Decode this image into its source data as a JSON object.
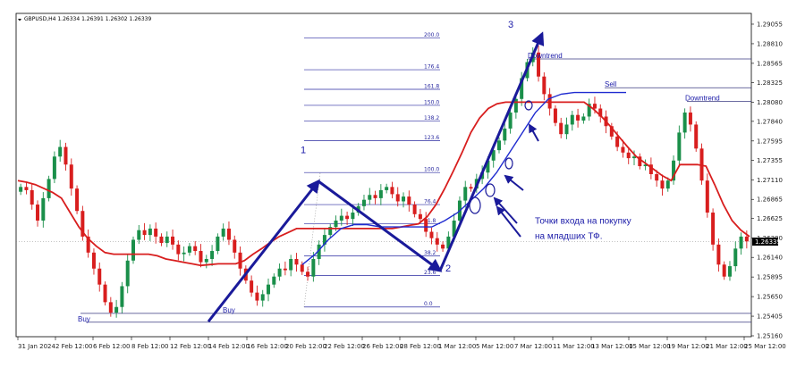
{
  "symbol_header": "GBPUSD,H4  1.26334 1.26391 1.26302 1.26339",
  "chart_data": {
    "type": "candlestick",
    "symbol": "GBPUSD",
    "timeframe": "H4",
    "ohlc_header": {
      "open": 1.26334,
      "high": 1.26391,
      "low": 1.26302,
      "close": 1.26339
    },
    "current_price_label": "1.26339",
    "ylim": [
      1.2505,
      1.2912
    ],
    "y_ticks": [
      "1.29055",
      "1.28810",
      "1.28565",
      "1.28325",
      "1.28080",
      "1.27840",
      "1.27595",
      "1.27355",
      "1.27110",
      "1.26865",
      "1.26625",
      "1.26380",
      "1.26140",
      "1.25895",
      "1.25650",
      "1.25405",
      "1.25160"
    ],
    "x_ticks": [
      "31 Jan 2024",
      "2 Feb 12:00",
      "6 Feb 12:00",
      "8 Feb 12:00",
      "12 Feb 12:00",
      "14 Feb 12:00",
      "16 Feb 12:00",
      "20 Feb 12:00",
      "22 Feb 12:00",
      "26 Feb 12:00",
      "28 Feb 12:00",
      "1 Mar 12:00",
      "5 Mar 12:00",
      "7 Mar 12:00",
      "11 Mar 12:00",
      "13 Mar 12:00",
      "15 Mar 12:00",
      "19 Mar 12:00",
      "21 Mar 12:00",
      "25 Mar 12:00"
    ],
    "fib_levels": [
      {
        "label": "200.0",
        "price": 1.2888
      },
      {
        "label": "176.4",
        "price": 1.28485
      },
      {
        "label": "161.8",
        "price": 1.2824
      },
      {
        "label": "150.0",
        "price": 1.2804
      },
      {
        "label": "138.2",
        "price": 1.27845
      },
      {
        "label": "123.6",
        "price": 1.276
      },
      {
        "label": "100.0",
        "price": 1.272
      },
      {
        "label": "76.4",
        "price": 1.268
      },
      {
        "label": "61.8",
        "price": 1.2656
      },
      {
        "label": "38.2",
        "price": 1.2616
      },
      {
        "label": "23.6",
        "price": 1.25915
      },
      {
        "label": "0.0",
        "price": 1.2552
      }
    ],
    "closes": [
      1.2702,
      1.2698,
      1.268,
      1.266,
      1.2688,
      1.2712,
      1.274,
      1.2752,
      1.273,
      1.27,
      1.2672,
      1.264,
      1.262,
      1.26,
      1.258,
      1.2558,
      1.2545,
      1.2552,
      1.2578,
      1.261,
      1.2636,
      1.2648,
      1.2642,
      1.265,
      1.264,
      1.2632,
      1.264,
      1.263,
      1.2618,
      1.262,
      1.2628,
      1.2622,
      1.2608,
      1.2612,
      1.2622,
      1.264,
      1.265,
      1.2636,
      1.262,
      1.26,
      1.2585,
      1.257,
      1.256,
      1.2568,
      1.258,
      1.259,
      1.26,
      1.2598,
      1.2612,
      1.2605,
      1.2596,
      1.259,
      1.2612,
      1.263,
      1.2642,
      1.2652,
      1.266,
      1.2666,
      1.2662,
      1.267,
      1.2678,
      1.2686,
      1.2692,
      1.2688,
      1.2698,
      1.2702,
      1.2693,
      1.2684,
      1.269,
      1.268,
      1.2668,
      1.2662,
      1.2646,
      1.2638,
      1.263,
      1.2625,
      1.264,
      1.266,
      1.2685,
      1.2702,
      1.27,
      1.2712,
      1.272,
      1.2735,
      1.2748,
      1.276,
      1.2775,
      1.2795,
      1.2812,
      1.2838,
      1.2858,
      1.287,
      1.284,
      1.2818,
      1.28,
      1.2782,
      1.2768,
      1.278,
      1.2792,
      1.2785,
      1.279,
      1.2806,
      1.28,
      1.279,
      1.2778,
      1.2765,
      1.2752,
      1.2745,
      1.2738,
      1.274,
      1.2728,
      1.273,
      1.2718,
      1.271,
      1.27,
      1.271,
      1.2735,
      1.277,
      1.2795,
      1.278,
      1.275,
      1.271,
      1.267,
      1.263,
      1.2605,
      1.259,
      1.2603,
      1.2625,
      1.264,
      1.2634
    ],
    "moving_average": [
      1.271,
      1.2708,
      1.2705,
      1.27,
      1.2695,
      1.2688,
      1.267,
      1.2652,
      1.2638,
      1.2628,
      1.262,
      1.2618,
      1.2618,
      1.2618,
      1.2618,
      1.2618,
      1.2616,
      1.2612,
      1.261,
      1.2608,
      1.2606,
      1.2604,
      1.2605,
      1.2606,
      1.2606,
      1.2606,
      1.261,
      1.2618,
      1.2625,
      1.2633,
      1.264,
      1.2645,
      1.265,
      1.265,
      1.265,
      1.265,
      1.265,
      1.265,
      1.265,
      1.265,
      1.265,
      1.265,
      1.265,
      1.265,
      1.2652,
      1.2654,
      1.2656,
      1.2665,
      1.268,
      1.27,
      1.2722,
      1.2745,
      1.277,
      1.2788,
      1.28,
      1.2806,
      1.2808,
      1.2808,
      1.2808,
      1.2808,
      1.2808,
      1.2808,
      1.2808,
      1.2808,
      1.2808,
      1.2808,
      1.28,
      1.279,
      1.2778,
      1.2765,
      1.2752,
      1.274,
      1.2732,
      1.2724,
      1.2716,
      1.271,
      1.273,
      1.273,
      1.273,
      1.2728,
      1.2705,
      1.268,
      1.266,
      1.2648,
      1.264
    ],
    "blue_line": [
      1.2605,
      1.2618,
      1.2636,
      1.265,
      1.2655,
      1.2655,
      1.2652,
      1.2652,
      1.2652,
      1.2652,
      1.2652,
      1.266,
      1.267,
      1.2685,
      1.27,
      1.272,
      1.2745,
      1.277,
      1.2795,
      1.2812,
      1.2818,
      1.282,
      1.282,
      1.282,
      1.282,
      1.282
    ],
    "annotations": [
      {
        "text": "1",
        "price": 1.2743
      },
      {
        "text": "2",
        "price": 1.2595
      },
      {
        "text": "3",
        "price": 1.29
      },
      {
        "text": "Downtrend",
        "price": 1.2862
      },
      {
        "text": "Sell",
        "price": 1.2826
      },
      {
        "text": "Downtrend",
        "price": 1.2809
      },
      {
        "text": "Buy",
        "price": 1.2533
      },
      {
        "text": "Buy",
        "price": 1.2544
      },
      {
        "text": "Точки входа на покупку",
        "price": 1.2655
      },
      {
        "text": "на младших ТФ.",
        "price": 1.2636
      }
    ],
    "colors": {
      "bull": "#1a8f4a",
      "bear": "#d81e1e",
      "ma": "#d81e1e",
      "blue_line": "#1f2bd0",
      "arrows": "#1a1a9a",
      "fib": "#2a2aa0",
      "hline": "#3a3a80"
    }
  }
}
